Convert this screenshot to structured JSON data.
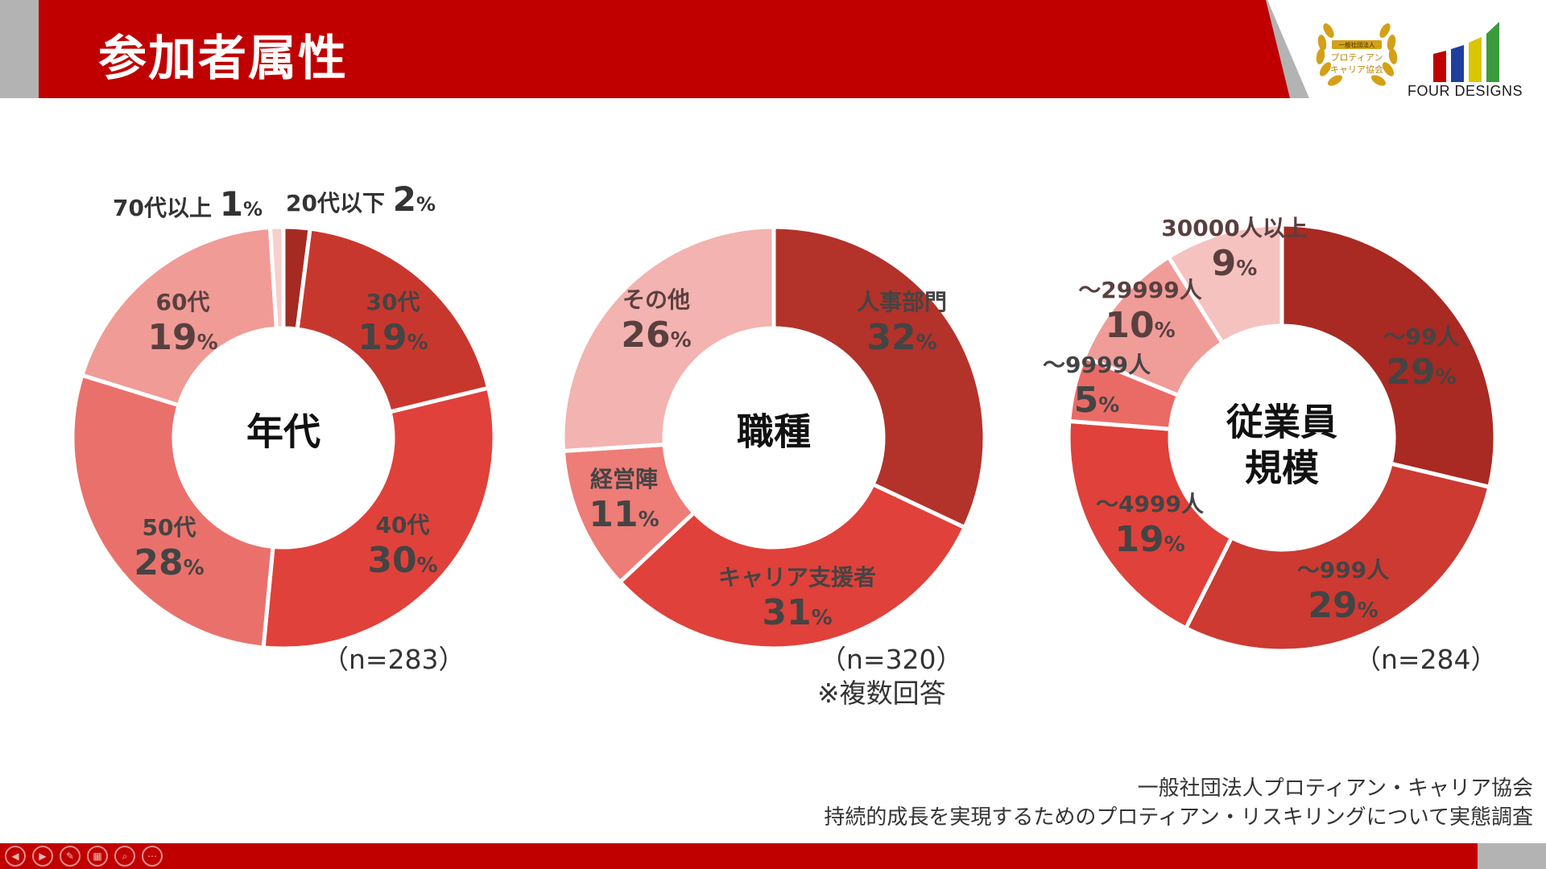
{
  "header": {
    "title": "参加者属性"
  },
  "logos": {
    "association_badge": [
      "一般社団法人",
      "プロティアン",
      "キャリア協会"
    ],
    "company": "FOUR DESIGNS"
  },
  "colors": {
    "header_red": "#c00000",
    "header_gray": "#b3b3b3",
    "label_dark": "#444444",
    "label_light": "#5a3f3f",
    "stripes": [
      "#c00000",
      "#1f3f9f",
      "#d9c600",
      "#3b9a3b"
    ]
  },
  "chart_data": [
    {
      "type": "pie",
      "title": "年代",
      "n_note": "（n=283）",
      "categories": [
        "20代以下",
        "30代",
        "40代",
        "50代",
        "60代",
        "70代以上"
      ],
      "values": [
        2,
        19,
        30,
        28,
        19,
        1
      ],
      "colors": [
        "#a52a22",
        "#c8372e",
        "#e0413a",
        "#ea716b",
        "#f09b96",
        "#f7cfcd"
      ],
      "unit": "%"
    },
    {
      "type": "pie",
      "title": "職種",
      "n_note": "（n=320）",
      "sub_note": "※複数回答",
      "categories": [
        "人事部門",
        "キャリア支援者",
        "経営陣",
        "その他"
      ],
      "values": [
        32,
        31,
        11,
        26
      ],
      "colors": [
        "#b3322a",
        "#e0413a",
        "#ee7c77",
        "#f3b3b0"
      ],
      "unit": "%"
    },
    {
      "type": "pie",
      "title": "従業員規模",
      "title_lines": [
        "従業員",
        "規模"
      ],
      "n_note": "（n=284）",
      "categories": [
        "～99人",
        "～999人",
        "～4999人",
        "～9999人",
        "～29999人",
        "30000人以上"
      ],
      "values": [
        29,
        29,
        19,
        5,
        10,
        9
      ],
      "colors": [
        "#a82a22",
        "#cc3a32",
        "#e0413a",
        "#ea6b66",
        "#f09c98",
        "#f5c2c0"
      ],
      "unit": "%"
    }
  ],
  "source": {
    "line1": "一般社団法人プロティアン・キャリア協会",
    "line2": "持続的成長を実現するためのプロティアン・リスキリングについて実態調査"
  },
  "slide_controls": [
    "prev-icon",
    "next-icon",
    "pen-icon",
    "slides-grid-icon",
    "zoom-icon",
    "more-icon"
  ]
}
